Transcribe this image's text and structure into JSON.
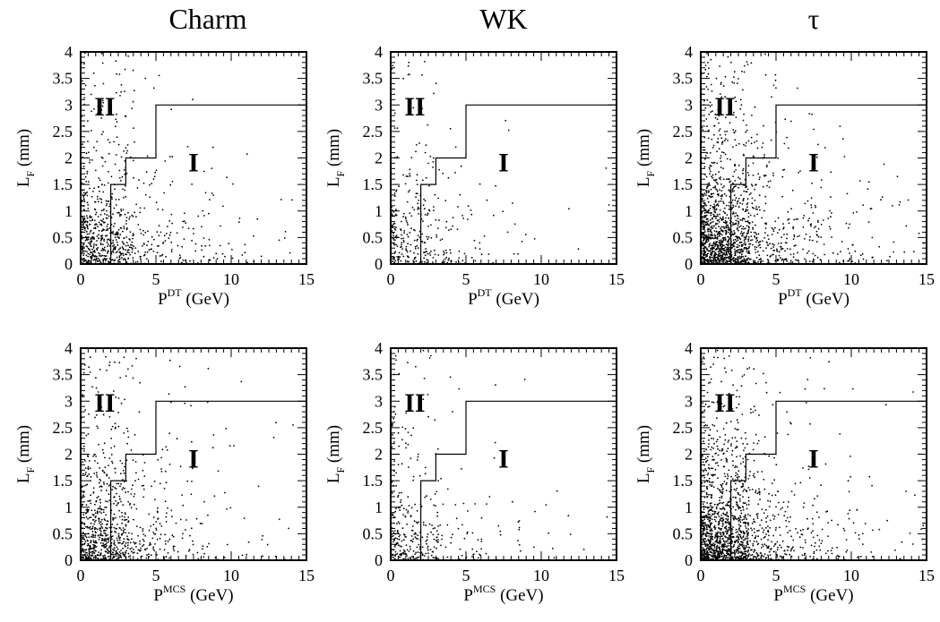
{
  "columns": [
    {
      "title": "Charm"
    },
    {
      "title": "WK"
    },
    {
      "title": "τ"
    }
  ],
  "chart_data": [
    {
      "type": "scatter",
      "row": "DT",
      "column": "Charm",
      "xlabel": "P",
      "xlabel_sup": "DT",
      "xlabel_unit": "(GeV)",
      "ylabel": "L",
      "ylabel_sub": "F",
      "ylabel_unit": "(mm)",
      "xlim": [
        0,
        15
      ],
      "ylim": [
        0,
        4
      ],
      "x_ticks": [
        "0",
        "5",
        "10",
        "15"
      ],
      "y_ticks": [
        "0",
        "0.5",
        "1",
        "1.5",
        "2",
        "2.5",
        "3",
        "3.5",
        "4"
      ],
      "region_labels": [
        "I",
        "II"
      ],
      "cut_boundary": [
        [
          2,
          0
        ],
        [
          2,
          1.5
        ],
        [
          3,
          1.5
        ],
        [
          3,
          2
        ],
        [
          5,
          2
        ],
        [
          5,
          3
        ],
        [
          15,
          3
        ]
      ],
      "approx_points": 780,
      "seed": 11
    },
    {
      "type": "scatter",
      "row": "DT",
      "column": "WK",
      "xlabel": "P",
      "xlabel_sup": "DT",
      "xlabel_unit": "(GeV)",
      "ylabel": "L",
      "ylabel_sub": "F",
      "ylabel_unit": "(mm)",
      "xlim": [
        0,
        15
      ],
      "ylim": [
        0,
        4
      ],
      "x_ticks": [
        "0",
        "5",
        "10",
        "15"
      ],
      "y_ticks": [
        "0",
        "0.5",
        "1",
        "1.5",
        "2",
        "2.5",
        "3",
        "3.5",
        "4"
      ],
      "region_labels": [
        "I",
        "II"
      ],
      "cut_boundary": [
        [
          2,
          0
        ],
        [
          2,
          1.5
        ],
        [
          3,
          1.5
        ],
        [
          3,
          2
        ],
        [
          5,
          2
        ],
        [
          5,
          3
        ],
        [
          15,
          3
        ]
      ],
      "approx_points": 330,
      "seed": 23
    },
    {
      "type": "scatter",
      "row": "DT",
      "column": "τ",
      "xlabel": "P",
      "xlabel_sup": "DT",
      "xlabel_unit": "(GeV)",
      "ylabel": "L",
      "ylabel_sub": "F",
      "ylabel_unit": "(mm)",
      "xlim": [
        0,
        15
      ],
      "ylim": [
        0,
        4
      ],
      "x_ticks": [
        "0",
        "5",
        "10",
        "15"
      ],
      "y_ticks": [
        "0",
        "0.5",
        "1",
        "1.5",
        "2",
        "2.5",
        "3",
        "3.5",
        "4"
      ],
      "region_labels": [
        "I",
        "II"
      ],
      "cut_boundary": [
        [
          2,
          0
        ],
        [
          2,
          1.5
        ],
        [
          3,
          1.5
        ],
        [
          3,
          2
        ],
        [
          5,
          2
        ],
        [
          5,
          3
        ],
        [
          15,
          3
        ]
      ],
      "approx_points": 1500,
      "seed": 37
    },
    {
      "type": "scatter",
      "row": "MCS",
      "column": "Charm",
      "xlabel": "P",
      "xlabel_sup": "MCS",
      "xlabel_unit": "(GeV)",
      "ylabel": "L",
      "ylabel_sub": "F",
      "ylabel_unit": "(mm)",
      "xlim": [
        0,
        15
      ],
      "ylim": [
        0,
        4
      ],
      "x_ticks": [
        "0",
        "5",
        "10",
        "15"
      ],
      "y_ticks": [
        "0",
        "0.5",
        "1",
        "1.5",
        "2",
        "2.5",
        "3",
        "3.5",
        "4"
      ],
      "region_labels": [
        "I",
        "II"
      ],
      "cut_boundary": [
        [
          2,
          0
        ],
        [
          2,
          1.5
        ],
        [
          3,
          1.5
        ],
        [
          3,
          2
        ],
        [
          5,
          2
        ],
        [
          5,
          3
        ],
        [
          15,
          3
        ]
      ],
      "approx_points": 880,
      "seed": 51
    },
    {
      "type": "scatter",
      "row": "MCS",
      "column": "WK",
      "xlabel": "P",
      "xlabel_sup": "MCS",
      "xlabel_unit": "(GeV)",
      "ylabel": "L",
      "ylabel_sub": "F",
      "ylabel_unit": "(mm)",
      "xlim": [
        0,
        15
      ],
      "ylim": [
        0,
        4
      ],
      "x_ticks": [
        "0",
        "5",
        "10",
        "15"
      ],
      "y_ticks": [
        "0",
        "0.5",
        "1",
        "1.5",
        "2",
        "2.5",
        "3",
        "3.5",
        "4"
      ],
      "region_labels": [
        "I",
        "II"
      ],
      "cut_boundary": [
        [
          2,
          0
        ],
        [
          2,
          1.5
        ],
        [
          3,
          1.5
        ],
        [
          3,
          2
        ],
        [
          5,
          2
        ],
        [
          5,
          3
        ],
        [
          15,
          3
        ]
      ],
      "approx_points": 360,
      "seed": 67
    },
    {
      "type": "scatter",
      "row": "MCS",
      "column": "τ",
      "xlabel": "P",
      "xlabel_sup": "MCS",
      "xlabel_unit": "(GeV)",
      "ylabel": "L",
      "ylabel_sub": "F",
      "ylabel_unit": "(mm)",
      "xlim": [
        0,
        15
      ],
      "ylim": [
        0,
        4
      ],
      "x_ticks": [
        "0",
        "5",
        "10",
        "15"
      ],
      "y_ticks": [
        "0",
        "0.5",
        "1",
        "1.5",
        "2",
        "2.5",
        "3",
        "3.5",
        "4"
      ],
      "region_labels": [
        "I",
        "II"
      ],
      "cut_boundary": [
        [
          2,
          0
        ],
        [
          2,
          1.5
        ],
        [
          3,
          1.5
        ],
        [
          3,
          2
        ],
        [
          5,
          2
        ],
        [
          5,
          3
        ],
        [
          15,
          3
        ]
      ],
      "approx_points": 1500,
      "seed": 83
    }
  ]
}
